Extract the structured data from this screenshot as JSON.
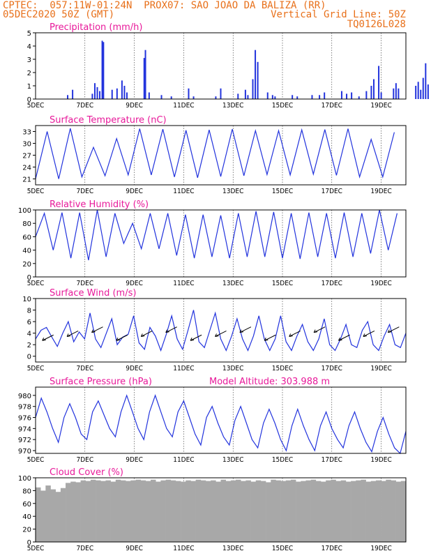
{
  "header": {
    "line1": "CPTEC:  057:11W-01:24N  PROX07: SAO JOAO DA BALIZA (RR)",
    "line2": "05DEC2020 50Z (GMT)",
    "grid_note": "Vertical Grid Line: 50Z",
    "model_id": "TQ0126L028"
  },
  "colors": {
    "title": "#e8199a",
    "header": "#e8701a",
    "series": "#2233dd",
    "cloud": "#a8a8a8"
  },
  "x_ticks": [
    "5DEC",
    "7DEC",
    "9DEC",
    "11DEC",
    "13DEC",
    "15DEC",
    "17DEC",
    "19DEC"
  ],
  "chart_data": [
    {
      "type": "bar",
      "title": "Precipitation (mm/h)",
      "ylim": [
        0,
        5
      ],
      "yticks": [
        "0",
        "1",
        "2",
        "3",
        "4",
        "5"
      ],
      "x": [
        "5DEC",
        "7DEC",
        "9DEC",
        "11DEC",
        "13DEC",
        "15DEC",
        "17DEC",
        "19DEC"
      ],
      "spikes_day_value": [
        [
          1.3,
          0.3
        ],
        [
          1.5,
          0.7
        ],
        [
          2.3,
          0.4
        ],
        [
          2.4,
          1.2
        ],
        [
          2.5,
          0.9
        ],
        [
          2.6,
          0.6
        ],
        [
          2.7,
          4.4
        ],
        [
          2.75,
          4.3
        ],
        [
          3.1,
          0.7
        ],
        [
          3.3,
          0.8
        ],
        [
          3.5,
          1.4
        ],
        [
          3.6,
          1.0
        ],
        [
          3.7,
          0.5
        ],
        [
          4.4,
          3.1
        ],
        [
          4.45,
          3.7
        ],
        [
          4.6,
          0.5
        ],
        [
          5.1,
          0.3
        ],
        [
          5.5,
          0.2
        ],
        [
          6.2,
          0.8
        ],
        [
          6.4,
          0.2
        ],
        [
          7.3,
          0.2
        ],
        [
          7.5,
          0.8
        ],
        [
          8.2,
          0.4
        ],
        [
          8.5,
          0.7
        ],
        [
          8.6,
          0.3
        ],
        [
          8.8,
          1.5
        ],
        [
          8.9,
          3.7
        ],
        [
          9.0,
          2.8
        ],
        [
          9.4,
          0.5
        ],
        [
          9.6,
          0.3
        ],
        [
          9.7,
          0.2
        ],
        [
          10.4,
          0.3
        ],
        [
          10.6,
          0.2
        ],
        [
          11.2,
          0.3
        ],
        [
          11.5,
          0.3
        ],
        [
          11.7,
          0.5
        ],
        [
          12.4,
          0.6
        ],
        [
          12.6,
          0.4
        ],
        [
          12.8,
          0.5
        ],
        [
          13.1,
          0.2
        ],
        [
          13.4,
          0.6
        ],
        [
          13.6,
          1.0
        ],
        [
          13.7,
          1.5
        ],
        [
          13.9,
          2.5
        ],
        [
          14.0,
          0.5
        ],
        [
          14.5,
          0.8
        ],
        [
          14.6,
          1.2
        ],
        [
          14.7,
          0.8
        ],
        [
          15.4,
          1.0
        ],
        [
          15.5,
          1.3
        ],
        [
          15.6,
          0.7
        ],
        [
          15.7,
          1.6
        ],
        [
          15.8,
          2.7
        ],
        [
          15.9,
          1.1
        ],
        [
          16.4,
          0.5
        ],
        [
          16.6,
          0.4
        ],
        [
          16.8,
          0.3
        ]
      ],
      "ylabel": ""
    },
    {
      "type": "line",
      "title": "Surface Temperature (nC)",
      "ylim": [
        19.5,
        34.5
      ],
      "yticks": [
        "21",
        "24",
        "27",
        "30",
        "33"
      ],
      "series": [
        {
          "min": [
            21.0,
            21.0,
            21.5,
            21.8,
            22.0,
            22.0,
            21.5,
            21.3,
            21.6,
            21.8,
            22.1,
            22.0,
            22.2,
            21.9,
            21.5,
            21.5
          ],
          "max": [
            33.0,
            33.8,
            29.0,
            31.2,
            33.7,
            33.6,
            33.3,
            33.4,
            33.6,
            33.2,
            33.2,
            33.4,
            33.5,
            33.7,
            31.0,
            32.8
          ]
        }
      ]
    },
    {
      "type": "line",
      "title": "Relative Humidity (%)",
      "ylim": [
        0,
        100
      ],
      "yticks": [
        "0",
        "20",
        "40",
        "60",
        "80",
        "100"
      ],
      "series": [
        {
          "min": [
            60,
            40,
            28,
            25,
            30,
            50,
            42,
            42,
            32,
            28,
            30,
            28,
            30,
            30,
            28,
            27,
            30,
            28,
            30,
            35,
            40
          ],
          "max": [
            95,
            96,
            96,
            100,
            95,
            80,
            95,
            95,
            93,
            93,
            92,
            95,
            98,
            97,
            95,
            96,
            95,
            96,
            95,
            100,
            95
          ]
        }
      ]
    },
    {
      "type": "line",
      "title": "Surface Wind (m/s)",
      "ylim": [
        -1,
        10
      ],
      "yticks": [
        "0",
        "2",
        "4",
        "6",
        "8",
        "10"
      ],
      "series": [
        {
          "name": "speed",
          "values": [
            3.0,
            4.5,
            5.0,
            3.3,
            1.7,
            4.0,
            6.0,
            2.5,
            4.2,
            3.0,
            7.5,
            3.0,
            1.5,
            4.0,
            6.5,
            2.0,
            3.3,
            3.8,
            7.0,
            2.3,
            1.2,
            5.0,
            3.5,
            1.0,
            3.8,
            7.0,
            3.0,
            1.2,
            4.5,
            8.0,
            2.5,
            1.5,
            4.5,
            7.5,
            3.0,
            1.0,
            3.5,
            6.5,
            3.0,
            1.0,
            3.5,
            7.0,
            3.0,
            1.0,
            3.0,
            7.0,
            2.5,
            1.0,
            3.5,
            5.5,
            2.5,
            1.0,
            3.0,
            6.5,
            2.0,
            1.0,
            3.0,
            5.5,
            2.0,
            1.5,
            4.5,
            6.0,
            2.0,
            1.0,
            3.5,
            5.5,
            2.0,
            1.5,
            4.0
          ]
        }
      ]
    },
    {
      "type": "line",
      "title": "Surface Pressure (hPa)",
      "annotation": "Model Altitude: 303.988 m",
      "ylim": [
        969.5,
        981.5
      ],
      "yticks": [
        "970",
        "972",
        "974",
        "976",
        "978",
        "980"
      ],
      "series": [
        {
          "values": [
            976.0,
            979.5,
            977.0,
            974.0,
            971.5,
            976.0,
            978.5,
            976.0,
            973.0,
            972.0,
            977.0,
            979.0,
            976.5,
            974.0,
            972.5,
            977.0,
            980.0,
            977.0,
            974.0,
            972.0,
            977.0,
            980.0,
            977.0,
            974.0,
            972.5,
            977.0,
            979.0,
            976.0,
            973.0,
            971.0,
            976.0,
            978.0,
            975.0,
            972.5,
            971.0,
            975.5,
            978.0,
            975.0,
            972.0,
            970.5,
            975.0,
            977.5,
            975.0,
            972.0,
            970.0,
            974.5,
            977.5,
            974.5,
            972.0,
            970.0,
            974.5,
            977.0,
            974.0,
            972.0,
            970.5,
            974.5,
            977.0,
            974.0,
            971.5,
            969.8,
            973.5,
            976.0,
            973.0,
            970.5,
            969.5,
            973.5
          ]
        }
      ]
    },
    {
      "type": "area",
      "title": "Cloud Cover (%)",
      "ylim": [
        0,
        100
      ],
      "yticks": [
        "0",
        "20",
        "40",
        "60",
        "80",
        "100"
      ],
      "series": [
        {
          "name": "cloud",
          "values": [
            85,
            80,
            88,
            82,
            78,
            84,
            92,
            94,
            93,
            96,
            95,
            97,
            96,
            95,
            96,
            94,
            97,
            96,
            95,
            96,
            97,
            96,
            95,
            97,
            94,
            96,
            97,
            96,
            95,
            94,
            96,
            95,
            97,
            96,
            95,
            96,
            94,
            97,
            95,
            96,
            97,
            95,
            96,
            94,
            96,
            95,
            93,
            97,
            96,
            95,
            96,
            97,
            94,
            95,
            96,
            97,
            95,
            94,
            96,
            97,
            95,
            96,
            94,
            95,
            96,
            97,
            94,
            95,
            96,
            95,
            97,
            96,
            94,
            95
          ]
        }
      ]
    }
  ]
}
